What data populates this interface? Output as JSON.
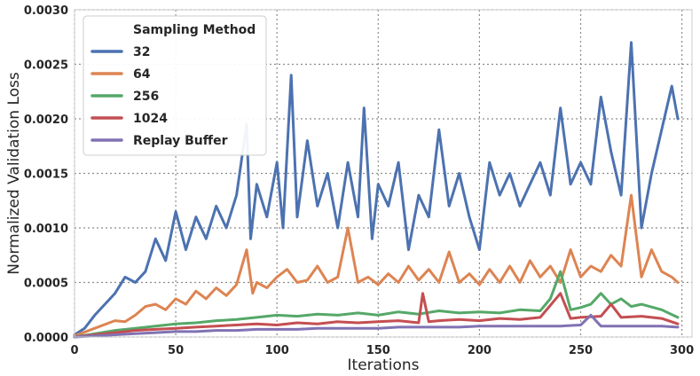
{
  "chart_data": {
    "type": "line",
    "xlabel": "Iterations",
    "ylabel": "Normalized Validation Loss",
    "xlim": [
      0,
      305
    ],
    "ylim": [
      0,
      0.003
    ],
    "xticks": [
      0,
      50,
      100,
      150,
      200,
      250,
      300
    ],
    "yticks": [
      "0.0000",
      "0.0005",
      "0.0010",
      "0.0015",
      "0.0020",
      "0.0025",
      "0.0030"
    ],
    "ytick_values": [
      0,
      0.0005,
      0.001,
      0.0015,
      0.002,
      0.0025,
      0.003
    ],
    "grid": true,
    "legend": {
      "title": "Sampling Method",
      "placement": "top-left"
    },
    "series": [
      {
        "name": "32",
        "color": "#4c72b0",
        "points": [
          [
            0,
            2e-05
          ],
          [
            5,
            8e-05
          ],
          [
            10,
            0.0002
          ],
          [
            15,
            0.0003
          ],
          [
            20,
            0.0004
          ],
          [
            25,
            0.00055
          ],
          [
            30,
            0.0005
          ],
          [
            35,
            0.0006
          ],
          [
            40,
            0.0009
          ],
          [
            45,
            0.0007
          ],
          [
            50,
            0.00115
          ],
          [
            55,
            0.0008
          ],
          [
            60,
            0.0011
          ],
          [
            65,
            0.0009
          ],
          [
            70,
            0.0012
          ],
          [
            75,
            0.001
          ],
          [
            80,
            0.0013
          ],
          [
            85,
            0.00195
          ],
          [
            87,
            0.0009
          ],
          [
            90,
            0.0014
          ],
          [
            95,
            0.0011
          ],
          [
            100,
            0.0016
          ],
          [
            103,
            0.001
          ],
          [
            107,
            0.0024
          ],
          [
            110,
            0.0011
          ],
          [
            115,
            0.0018
          ],
          [
            120,
            0.0012
          ],
          [
            125,
            0.0015
          ],
          [
            130,
            0.001
          ],
          [
            135,
            0.0016
          ],
          [
            140,
            0.0011
          ],
          [
            143,
            0.0021
          ],
          [
            147,
            0.0009
          ],
          [
            150,
            0.0014
          ],
          [
            155,
            0.0012
          ],
          [
            160,
            0.0016
          ],
          [
            165,
            0.0008
          ],
          [
            170,
            0.0013
          ],
          [
            175,
            0.0011
          ],
          [
            180,
            0.0019
          ],
          [
            185,
            0.0012
          ],
          [
            190,
            0.0015
          ],
          [
            195,
            0.0011
          ],
          [
            200,
            0.0008
          ],
          [
            205,
            0.0016
          ],
          [
            210,
            0.0013
          ],
          [
            215,
            0.0015
          ],
          [
            220,
            0.0012
          ],
          [
            225,
            0.0014
          ],
          [
            230,
            0.0016
          ],
          [
            235,
            0.0013
          ],
          [
            240,
            0.0021
          ],
          [
            245,
            0.0014
          ],
          [
            250,
            0.0016
          ],
          [
            255,
            0.0014
          ],
          [
            260,
            0.0022
          ],
          [
            265,
            0.0017
          ],
          [
            270,
            0.0013
          ],
          [
            275,
            0.0027
          ],
          [
            280,
            0.001
          ],
          [
            285,
            0.0015
          ],
          [
            290,
            0.0019
          ],
          [
            295,
            0.0023
          ],
          [
            298,
            0.002
          ]
        ]
      },
      {
        "name": "64",
        "color": "#dd8452",
        "points": [
          [
            0,
            1e-05
          ],
          [
            10,
            8e-05
          ],
          [
            20,
            0.00015
          ],
          [
            25,
            0.00014
          ],
          [
            30,
            0.0002
          ],
          [
            35,
            0.00028
          ],
          [
            40,
            0.0003
          ],
          [
            45,
            0.00025
          ],
          [
            50,
            0.00035
          ],
          [
            55,
            0.0003
          ],
          [
            60,
            0.00042
          ],
          [
            65,
            0.00035
          ],
          [
            70,
            0.00045
          ],
          [
            75,
            0.00038
          ],
          [
            80,
            0.00048
          ],
          [
            85,
            0.0008
          ],
          [
            88,
            0.0004
          ],
          [
            90,
            0.0005
          ],
          [
            95,
            0.00045
          ],
          [
            100,
            0.00055
          ],
          [
            105,
            0.00062
          ],
          [
            110,
            0.0005
          ],
          [
            115,
            0.00052
          ],
          [
            120,
            0.00065
          ],
          [
            125,
            0.0005
          ],
          [
            130,
            0.00055
          ],
          [
            135,
            0.001
          ],
          [
            140,
            0.0005
          ],
          [
            145,
            0.00055
          ],
          [
            150,
            0.00048
          ],
          [
            155,
            0.00058
          ],
          [
            160,
            0.0005
          ],
          [
            165,
            0.00065
          ],
          [
            170,
            0.00052
          ],
          [
            175,
            0.00062
          ],
          [
            180,
            0.0005
          ],
          [
            185,
            0.00078
          ],
          [
            190,
            0.0005
          ],
          [
            195,
            0.00058
          ],
          [
            200,
            0.00048
          ],
          [
            205,
            0.00062
          ],
          [
            210,
            0.0005
          ],
          [
            215,
            0.00065
          ],
          [
            220,
            0.0005
          ],
          [
            225,
            0.0007
          ],
          [
            230,
            0.00055
          ],
          [
            235,
            0.00065
          ],
          [
            240,
            0.0005
          ],
          [
            245,
            0.0008
          ],
          [
            250,
            0.00055
          ],
          [
            255,
            0.00065
          ],
          [
            260,
            0.0006
          ],
          [
            265,
            0.00075
          ],
          [
            270,
            0.00065
          ],
          [
            275,
            0.0013
          ],
          [
            280,
            0.00055
          ],
          [
            285,
            0.0008
          ],
          [
            290,
            0.0006
          ],
          [
            295,
            0.00055
          ],
          [
            298,
            0.0005
          ]
        ]
      },
      {
        "name": "256",
        "color": "#55a868",
        "points": [
          [
            0,
            0
          ],
          [
            10,
            3e-05
          ],
          [
            20,
            6e-05
          ],
          [
            30,
            8e-05
          ],
          [
            40,
            0.0001
          ],
          [
            50,
            0.00012
          ],
          [
            60,
            0.00013
          ],
          [
            70,
            0.00015
          ],
          [
            80,
            0.00016
          ],
          [
            90,
            0.00018
          ],
          [
            100,
            0.0002
          ],
          [
            110,
            0.00019
          ],
          [
            120,
            0.00021
          ],
          [
            130,
            0.0002
          ],
          [
            140,
            0.00022
          ],
          [
            150,
            0.0002
          ],
          [
            160,
            0.00023
          ],
          [
            170,
            0.00021
          ],
          [
            180,
            0.00024
          ],
          [
            190,
            0.00022
          ],
          [
            200,
            0.00023
          ],
          [
            210,
            0.00022
          ],
          [
            220,
            0.00025
          ],
          [
            230,
            0.00024
          ],
          [
            235,
            0.00035
          ],
          [
            240,
            0.0006
          ],
          [
            245,
            0.00025
          ],
          [
            250,
            0.00027
          ],
          [
            255,
            0.0003
          ],
          [
            260,
            0.0004
          ],
          [
            265,
            0.0003
          ],
          [
            270,
            0.00035
          ],
          [
            275,
            0.00028
          ],
          [
            280,
            0.0003
          ],
          [
            290,
            0.00025
          ],
          [
            298,
            0.00018
          ]
        ]
      },
      {
        "name": "1024",
        "color": "#c44e52",
        "points": [
          [
            0,
            0
          ],
          [
            10,
            2e-05
          ],
          [
            20,
            4e-05
          ],
          [
            30,
            6e-05
          ],
          [
            40,
            7e-05
          ],
          [
            50,
            8e-05
          ],
          [
            60,
            9e-05
          ],
          [
            70,
            0.0001
          ],
          [
            80,
            0.00011
          ],
          [
            90,
            0.00012
          ],
          [
            100,
            0.00011
          ],
          [
            110,
            0.00013
          ],
          [
            120,
            0.00012
          ],
          [
            130,
            0.00014
          ],
          [
            140,
            0.00013
          ],
          [
            150,
            0.00014
          ],
          [
            160,
            0.00015
          ],
          [
            170,
            0.00013
          ],
          [
            172,
            0.0004
          ],
          [
            175,
            0.00014
          ],
          [
            180,
            0.00015
          ],
          [
            190,
            0.00016
          ],
          [
            200,
            0.00015
          ],
          [
            210,
            0.00017
          ],
          [
            220,
            0.00016
          ],
          [
            230,
            0.00018
          ],
          [
            240,
            0.0004
          ],
          [
            245,
            0.00017
          ],
          [
            250,
            0.00018
          ],
          [
            260,
            0.00019
          ],
          [
            265,
            0.0003
          ],
          [
            270,
            0.00018
          ],
          [
            280,
            0.00019
          ],
          [
            290,
            0.00017
          ],
          [
            298,
            0.00012
          ]
        ]
      },
      {
        "name": "Replay Buffer",
        "color": "#8172b3",
        "points": [
          [
            0,
            0
          ],
          [
            10,
            1e-05
          ],
          [
            20,
            2e-05
          ],
          [
            30,
            3e-05
          ],
          [
            40,
            4e-05
          ],
          [
            50,
            5e-05
          ],
          [
            60,
            5e-05
          ],
          [
            70,
            6e-05
          ],
          [
            80,
            6e-05
          ],
          [
            90,
            7e-05
          ],
          [
            100,
            7e-05
          ],
          [
            110,
            7e-05
          ],
          [
            120,
            8e-05
          ],
          [
            130,
            8e-05
          ],
          [
            140,
            8e-05
          ],
          [
            150,
            8e-05
          ],
          [
            160,
            9e-05
          ],
          [
            170,
            9e-05
          ],
          [
            180,
            9e-05
          ],
          [
            190,
            9e-05
          ],
          [
            200,
            0.0001
          ],
          [
            210,
            0.0001
          ],
          [
            220,
            0.0001
          ],
          [
            230,
            0.0001
          ],
          [
            240,
            0.0001
          ],
          [
            250,
            0.00011
          ],
          [
            255,
            0.0002
          ],
          [
            260,
            0.0001
          ],
          [
            270,
            0.0001
          ],
          [
            280,
            0.0001
          ],
          [
            290,
            0.0001
          ],
          [
            298,
            9e-05
          ]
        ]
      }
    ]
  }
}
